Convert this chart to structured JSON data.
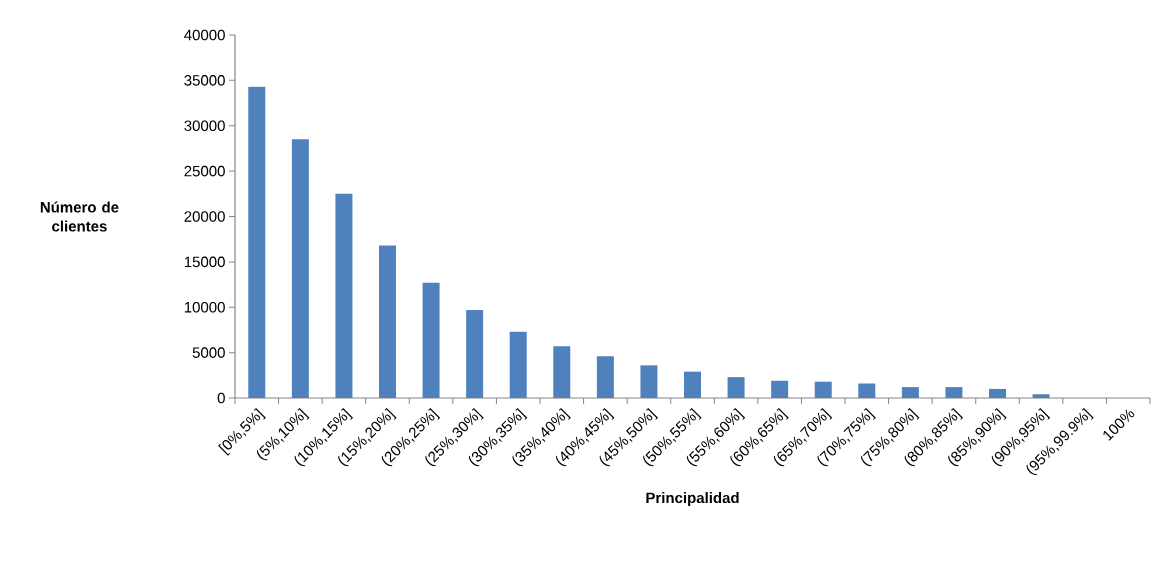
{
  "chart_data": {
    "type": "bar",
    "xlabel": "Principalidad",
    "ylabel": "Número de clientes",
    "categories": [
      "[0%,5%]",
      "(5%,10%]",
      "(10%,15%]",
      "(15%,20%]",
      "(20%,25%]",
      "(25%,30%]",
      "(30%,35%]",
      "(35%,40%]",
      "(40%,45%]",
      "(45%,50%]",
      "(50%,55%]",
      "(55%,60%]",
      "(60%,65%]",
      "(65%,70%]",
      "(70%,75%]",
      "(75%,80%]",
      "(80%,85%]",
      "(85%,90%]",
      "(90%,95%]",
      "(95%,99.9%]",
      "100%"
    ],
    "values": [
      34300,
      28500,
      22500,
      16800,
      12700,
      9700,
      7300,
      5700,
      4600,
      3600,
      2900,
      2300,
      1900,
      1800,
      1600,
      1200,
      1200,
      1000,
      400,
      0,
      0
    ],
    "color": "#4f81bd",
    "ylim": [
      0,
      40000
    ],
    "yticks": [
      0,
      5000,
      10000,
      15000,
      20000,
      25000,
      30000,
      35000,
      40000
    ],
    "grid": false
  }
}
